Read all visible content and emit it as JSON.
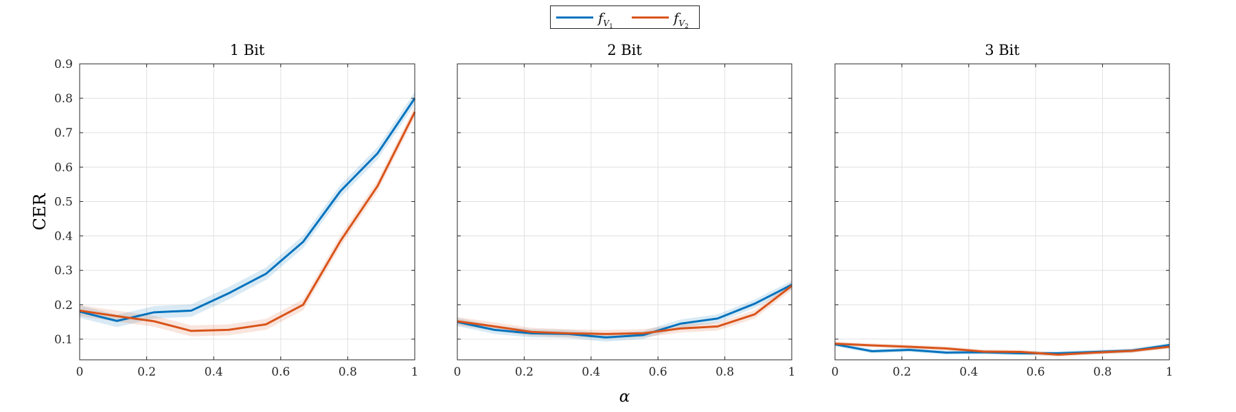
{
  "chart_data": [
    {
      "type": "line",
      "title": "1 Bit",
      "ylabel": "CER",
      "xlabel": "",
      "xlim": [
        0,
        1
      ],
      "ylim": [
        0.04,
        0.9
      ],
      "xticks": [
        "0",
        "0.2",
        "0.4",
        "0.6",
        "0.8",
        "1"
      ],
      "yticks": [
        "0.1",
        "0.2",
        "0.3",
        "0.4",
        "0.5",
        "0.6",
        "0.7",
        "0.8",
        "0.9"
      ],
      "grid": true,
      "x": [
        0,
        0.111,
        0.222,
        0.333,
        0.444,
        0.556,
        0.667,
        0.778,
        0.889,
        1
      ],
      "series": [
        {
          "values": [
            0.18,
            0.153,
            0.178,
            0.183,
            0.233,
            0.29,
            0.383,
            0.53,
            0.64,
            0.8
          ],
          "band": 0.018
        },
        {
          "values": [
            0.183,
            0.167,
            0.152,
            0.124,
            0.127,
            0.143,
            0.2,
            0.385,
            0.545,
            0.76
          ],
          "band": 0.016
        }
      ]
    },
    {
      "type": "line",
      "title": "2 Bit",
      "xlabel": "α",
      "xlim": [
        0,
        1
      ],
      "ylim": [
        0.04,
        0.9
      ],
      "xticks": [
        "0",
        "0.2",
        "0.4",
        "0.6",
        "0.8",
        "1"
      ],
      "grid": true,
      "x": [
        0,
        0.111,
        0.222,
        0.333,
        0.444,
        0.556,
        0.667,
        0.778,
        0.889,
        1
      ],
      "series": [
        {
          "values": [
            0.15,
            0.127,
            0.117,
            0.115,
            0.105,
            0.112,
            0.145,
            0.16,
            0.203,
            0.258
          ],
          "band": 0.012
        },
        {
          "values": [
            0.152,
            0.137,
            0.121,
            0.117,
            0.115,
            0.117,
            0.131,
            0.137,
            0.172,
            0.255
          ],
          "band": 0.012
        }
      ]
    },
    {
      "type": "line",
      "title": "3 Bit",
      "xlabel": "",
      "xlim": [
        0,
        1
      ],
      "ylim": [
        0.04,
        0.9
      ],
      "xticks": [
        "0",
        "0.2",
        "0.4",
        "0.6",
        "0.8",
        "1"
      ],
      "grid": true,
      "x": [
        0,
        0.111,
        0.222,
        0.333,
        0.444,
        0.556,
        0.667,
        0.778,
        0.889,
        1
      ],
      "series": [
        {
          "values": [
            0.085,
            0.065,
            0.069,
            0.061,
            0.062,
            0.059,
            0.059,
            0.063,
            0.067,
            0.083
          ],
          "band": 0.006
        },
        {
          "values": [
            0.087,
            0.082,
            0.078,
            0.073,
            0.064,
            0.063,
            0.055,
            0.061,
            0.066,
            0.078
          ],
          "band": 0.006
        }
      ]
    }
  ],
  "legend": {
    "placement": "top-center",
    "entries": [
      {
        "base": "f",
        "sub": "V",
        "subsub": "1"
      },
      {
        "base": "f",
        "sub": "V",
        "subsub": "2"
      }
    ]
  },
  "colors": {
    "series1": "#0072BD",
    "series2": "#D95319",
    "grid": "#e0e0e0",
    "axis": "#262626"
  }
}
